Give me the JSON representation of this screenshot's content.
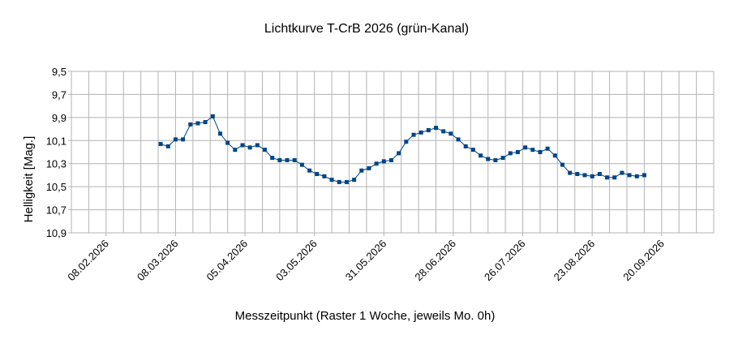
{
  "chart_data": {
    "type": "line",
    "title": "Lichtkurve T-CrB 2026 (grün-Kanal)",
    "x_label": "Messzeitpunkt (Raster 1 Woche, jeweils Mo. 0h)",
    "y_label": "Helligkeit [Mag.]",
    "color": "#004586",
    "markers": true,
    "y_inverted": true,
    "grid": true,
    "x_grid_step_days": 7,
    "xlim": [
      "2026-01-25",
      "2026-10-11"
    ],
    "xticks": [
      {
        "value": "2026-02-08",
        "label": "08.02.2026"
      },
      {
        "value": "2026-03-08",
        "label": "08.03.2026"
      },
      {
        "value": "2026-04-05",
        "label": "05.04.2026"
      },
      {
        "value": "2026-05-03",
        "label": "03.05.2026"
      },
      {
        "value": "2026-05-31",
        "label": "31.05.2026"
      },
      {
        "value": "2026-06-28",
        "label": "28.06.2026"
      },
      {
        "value": "2026-07-26",
        "label": "26.07.2026"
      },
      {
        "value": "2026-08-23",
        "label": "23.08.2026"
      },
      {
        "value": "2026-09-20",
        "label": "20.09.2026"
      }
    ],
    "ylim": [
      9.5,
      10.9
    ],
    "yticks": [
      {
        "value": 9.5,
        "label": "9,5"
      },
      {
        "value": 9.7,
        "label": "9,7"
      },
      {
        "value": 9.9,
        "label": "9,9"
      },
      {
        "value": 10.1,
        "label": "10,1"
      },
      {
        "value": 10.3,
        "label": "10,3"
      },
      {
        "value": 10.5,
        "label": "10,5"
      },
      {
        "value": 10.7,
        "label": "10,7"
      },
      {
        "value": 10.9,
        "label": "10,9"
      }
    ],
    "x": [
      "2026-03-02",
      "2026-03-05",
      "2026-03-08",
      "2026-03-11",
      "2026-03-14",
      "2026-03-17",
      "2026-03-20",
      "2026-03-23",
      "2026-03-26",
      "2026-03-29",
      "2026-04-01",
      "2026-04-04",
      "2026-04-07",
      "2026-04-10",
      "2026-04-13",
      "2026-04-16",
      "2026-04-19",
      "2026-04-22",
      "2026-04-25",
      "2026-04-28",
      "2026-05-01",
      "2026-05-04",
      "2026-05-07",
      "2026-05-10",
      "2026-05-13",
      "2026-05-16",
      "2026-05-19",
      "2026-05-22",
      "2026-05-25",
      "2026-05-28",
      "2026-05-31",
      "2026-06-03",
      "2026-06-06",
      "2026-06-09",
      "2026-06-12",
      "2026-06-15",
      "2026-06-18",
      "2026-06-21",
      "2026-06-24",
      "2026-06-27",
      "2026-06-30",
      "2026-07-03",
      "2026-07-06",
      "2026-07-09",
      "2026-07-12",
      "2026-07-15",
      "2026-07-18",
      "2026-07-21",
      "2026-07-24",
      "2026-07-27",
      "2026-07-30",
      "2026-08-02",
      "2026-08-05",
      "2026-08-08",
      "2026-08-11",
      "2026-08-14",
      "2026-08-17",
      "2026-08-20",
      "2026-08-23",
      "2026-08-26",
      "2026-08-29",
      "2026-09-01",
      "2026-09-04",
      "2026-09-07",
      "2026-09-10",
      "2026-09-13"
    ],
    "values": [
      10.13,
      10.15,
      10.09,
      10.09,
      9.96,
      9.95,
      9.94,
      9.89,
      10.04,
      10.12,
      10.18,
      10.14,
      10.16,
      10.14,
      10.18,
      10.25,
      10.27,
      10.27,
      10.27,
      10.31,
      10.36,
      10.39,
      10.41,
      10.44,
      10.46,
      10.46,
      10.44,
      10.36,
      10.34,
      10.3,
      10.28,
      10.27,
      10.21,
      10.11,
      10.05,
      10.03,
      10.01,
      9.99,
      10.02,
      10.04,
      10.09,
      10.15,
      10.18,
      10.23,
      10.26,
      10.27,
      10.25,
      10.21,
      10.2,
      10.16,
      10.18,
      10.2,
      10.17,
      10.23,
      10.31,
      10.38,
      10.39,
      10.4,
      10.41,
      10.39,
      10.42,
      10.42,
      10.38,
      10.4,
      10.41,
      10.4
    ]
  }
}
